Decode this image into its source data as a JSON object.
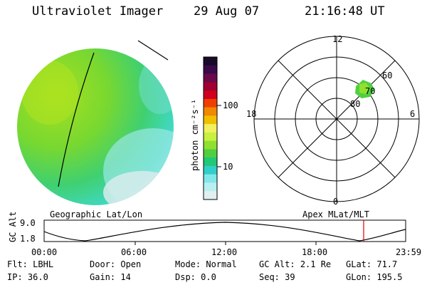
{
  "header": {
    "title": "Ultraviolet Imager",
    "date": "29 Aug 07",
    "time": "21:16:48 UT"
  },
  "colorbar": {
    "unit_label": "photon cm⁻²s⁻¹",
    "tick_labels": [
      "100",
      "10"
    ],
    "colors": [
      "#1a0a2a",
      "#3a0a4a",
      "#6a0a4a",
      "#a00030",
      "#d00020",
      "#f04000",
      "#f08800",
      "#f0c000",
      "#f0f060",
      "#c8f040",
      "#90e030",
      "#50d040",
      "#20c878",
      "#30d0c8",
      "#80e8e8",
      "#b8f0f0",
      "#e0f0f0"
    ]
  },
  "left_panel": {
    "label": "Geographic Lat/Lon"
  },
  "right_panel": {
    "label": "Apex MLat/MLT",
    "mlt_labels": [
      "12",
      "18",
      "6",
      "0"
    ],
    "lat_labels": [
      "60",
      "70",
      "80"
    ]
  },
  "timeline": {
    "y_axis_label": "GC Alt",
    "y_ticks": [
      "9.0",
      "1.8"
    ],
    "x_ticks": [
      "00:00",
      "06:00",
      "12:00",
      "18:00",
      "23:59"
    ],
    "current_time_fraction": 0.8838,
    "marker_color": "#e00000"
  },
  "info": {
    "row1": [
      {
        "label": "Flt:",
        "value": "LBHL"
      },
      {
        "label": "Door:",
        "value": "Open"
      },
      {
        "label": "Mode:",
        "value": "Normal"
      },
      {
        "label": "GC Alt:",
        "value": "2.1 Re"
      },
      {
        "label": "GLat:",
        "value": "71.7"
      }
    ],
    "row2": [
      {
        "label": "IP:",
        "value": "36.0"
      },
      {
        "label": "Gain:",
        "value": "14"
      },
      {
        "label": "Dsp:",
        "value": "0.0"
      },
      {
        "label": "Seq:",
        "value": "39"
      },
      {
        "label": "GLon:",
        "value": "195.5"
      }
    ]
  }
}
